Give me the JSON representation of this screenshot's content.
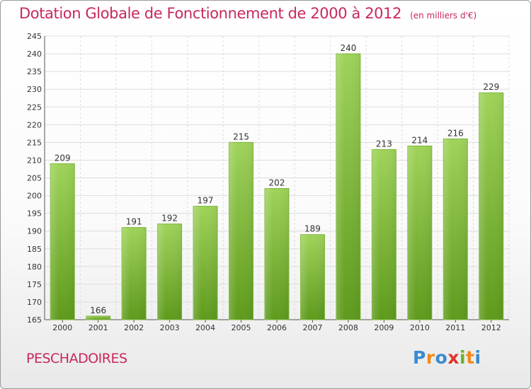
{
  "title": "Dotation Globale de Fonctionnement de 2000 à 2012",
  "subtitle": "(en milliers d'€)",
  "commune": "PESCHADOIRES",
  "logo": [
    "P",
    "r",
    "o",
    "x",
    "i",
    "t",
    "i"
  ],
  "colors": {
    "title": "#c8285a",
    "bar_top": "#9fd35a",
    "bar_bottom": "#5e9a1c",
    "grid": "#dddddd"
  },
  "chart_data": {
    "type": "bar",
    "title": "Dotation Globale de Fonctionnement de 2000 à 2012",
    "subtitle": "(en milliers d'€)",
    "xlabel": "",
    "ylabel": "",
    "categories": [
      "2000",
      "2001",
      "2002",
      "2003",
      "2004",
      "2005",
      "2006",
      "2007",
      "2008",
      "2009",
      "2010",
      "2011",
      "2012"
    ],
    "values": [
      209,
      166,
      191,
      192,
      197,
      215,
      202,
      189,
      240,
      213,
      214,
      216,
      229
    ],
    "ylim": [
      165,
      245
    ],
    "yticks": [
      165,
      170,
      175,
      180,
      185,
      190,
      195,
      200,
      205,
      210,
      215,
      220,
      225,
      230,
      235,
      240,
      245
    ],
    "grid": true,
    "legend": "none"
  }
}
